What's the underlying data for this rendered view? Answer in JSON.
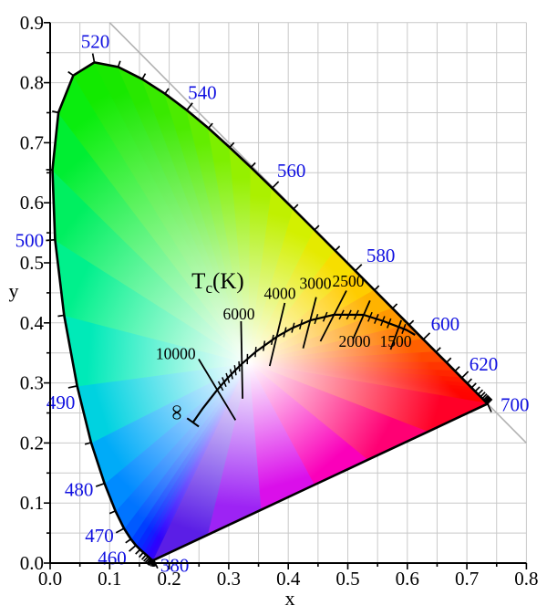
{
  "chart_data": {
    "type": "line",
    "title": "",
    "xlabel": "x",
    "ylabel": "y",
    "xlim": [
      0,
      0.8
    ],
    "ylim": [
      0,
      0.9
    ],
    "grid_step": 0.05,
    "tick_step": 0.1,
    "grid_on": true,
    "xticks": [
      "0.0",
      "0.1",
      "0.2",
      "0.3",
      "0.4",
      "0.5",
      "0.6",
      "0.7",
      "0.8"
    ],
    "yticks": [
      "0.0",
      "0.1",
      "0.2",
      "0.3",
      "0.4",
      "0.5",
      "0.6",
      "0.7",
      "0.8",
      "0.9"
    ],
    "tc_title": {
      "t": "T",
      "sub": "c",
      "rest": "(K)",
      "x": 0.2817,
      "y": 0.4696
    },
    "infinity": {
      "label": "∞",
      "x": 0.2399,
      "y": 0.2342,
      "label_x": 0.2021,
      "label_y": 0.2508
    },
    "diagonal_line": {
      "from": [
        0.1,
        0.9
      ],
      "to": [
        0.8,
        0.2
      ]
    },
    "white_point": [
      0.3333,
      0.3333
    ],
    "colors": {
      "wavelength_labels": "#1010e0",
      "temperature_labels": "#000000",
      "curves": "#000000",
      "grid": "#c9c9c9",
      "diagonal": "#b2b2b2",
      "background": "#ffffff"
    },
    "spectral_locus": [
      [
        380,
        0.1741,
        0.005
      ],
      [
        385,
        0.174,
        0.005
      ],
      [
        390,
        0.1738,
        0.0049
      ],
      [
        395,
        0.1736,
        0.0049
      ],
      [
        400,
        0.1733,
        0.0048
      ],
      [
        405,
        0.173,
        0.0048
      ],
      [
        410,
        0.1726,
        0.0048
      ],
      [
        415,
        0.1721,
        0.0048
      ],
      [
        420,
        0.1714,
        0.0051
      ],
      [
        425,
        0.1703,
        0.0058
      ],
      [
        430,
        0.1689,
        0.0069
      ],
      [
        435,
        0.1669,
        0.0086
      ],
      [
        440,
        0.1644,
        0.0109
      ],
      [
        445,
        0.1611,
        0.0138
      ],
      [
        450,
        0.1566,
        0.0177
      ],
      [
        455,
        0.151,
        0.0227
      ],
      [
        460,
        0.144,
        0.0297
      ],
      [
        465,
        0.1355,
        0.0399
      ],
      [
        470,
        0.1241,
        0.0578
      ],
      [
        475,
        0.1096,
        0.0868
      ],
      [
        480,
        0.0913,
        0.1327
      ],
      [
        485,
        0.0687,
        0.2007
      ],
      [
        490,
        0.0454,
        0.295
      ],
      [
        495,
        0.0235,
        0.4127
      ],
      [
        500,
        0.0082,
        0.5384
      ],
      [
        505,
        0.0039,
        0.6548
      ],
      [
        510,
        0.0139,
        0.7502
      ],
      [
        515,
        0.0389,
        0.812
      ],
      [
        520,
        0.0743,
        0.8338
      ],
      [
        525,
        0.1142,
        0.8262
      ],
      [
        530,
        0.1547,
        0.8059
      ],
      [
        535,
        0.1929,
        0.7816
      ],
      [
        540,
        0.2296,
        0.7543
      ],
      [
        545,
        0.2658,
        0.7243
      ],
      [
        550,
        0.3016,
        0.6923
      ],
      [
        555,
        0.3373,
        0.6589
      ],
      [
        560,
        0.3731,
        0.6245
      ],
      [
        565,
        0.4087,
        0.5896
      ],
      [
        570,
        0.4441,
        0.5547
      ],
      [
        575,
        0.4788,
        0.5202
      ],
      [
        580,
        0.5125,
        0.4866
      ],
      [
        585,
        0.5448,
        0.4544
      ],
      [
        590,
        0.5752,
        0.4242
      ],
      [
        595,
        0.6029,
        0.3965
      ],
      [
        600,
        0.627,
        0.3725
      ],
      [
        605,
        0.6482,
        0.3514
      ],
      [
        610,
        0.6658,
        0.334
      ],
      [
        615,
        0.6801,
        0.3197
      ],
      [
        620,
        0.6915,
        0.3083
      ],
      [
        625,
        0.7006,
        0.2993
      ],
      [
        630,
        0.7079,
        0.292
      ],
      [
        635,
        0.714,
        0.2859
      ],
      [
        640,
        0.719,
        0.2809
      ],
      [
        645,
        0.723,
        0.277
      ],
      [
        650,
        0.726,
        0.274
      ],
      [
        655,
        0.7283,
        0.2717
      ],
      [
        660,
        0.73,
        0.27
      ],
      [
        665,
        0.7311,
        0.2689
      ],
      [
        670,
        0.732,
        0.268
      ],
      [
        675,
        0.7327,
        0.2673
      ],
      [
        680,
        0.7334,
        0.2666
      ],
      [
        685,
        0.734,
        0.266
      ],
      [
        690,
        0.7344,
        0.2656
      ],
      [
        695,
        0.7346,
        0.2654
      ],
      [
        700,
        0.7347,
        0.2653
      ]
    ],
    "purple_line_points": [
      [
        0.18,
        0.6338,
        0.2184
      ],
      [
        0.36,
        0.5329,
        0.1716
      ],
      [
        0.52,
        0.4432,
        0.1299
      ],
      [
        0.68,
        0.3535,
        0.0883
      ],
      [
        0.84,
        0.2638,
        0.0467
      ]
    ],
    "wavelength_labels": [
      {
        "nm": 380,
        "text": "380"
      },
      {
        "nm": 460,
        "text": "460"
      },
      {
        "nm": 470,
        "text": "470"
      },
      {
        "nm": 480,
        "text": "480"
      },
      {
        "nm": 490,
        "text": "490"
      },
      {
        "nm": 500,
        "text": "500"
      },
      {
        "nm": 520,
        "text": "520"
      },
      {
        "nm": 540,
        "text": "540"
      },
      {
        "nm": 560,
        "text": "560"
      },
      {
        "nm": 580,
        "text": "580"
      },
      {
        "nm": 600,
        "text": "600"
      },
      {
        "nm": 620,
        "text": "620"
      },
      {
        "nm": 700,
        "text": "700"
      }
    ],
    "planckian_locus": [
      [
        0,
        0.2399,
        0.2342
      ],
      [
        50,
        0.2565,
        0.2577
      ],
      [
        100,
        0.2807,
        0.2884
      ],
      [
        125,
        0.2952,
        0.3048
      ],
      [
        143,
        0.3064,
        0.3166
      ],
      [
        166.7,
        0.3221,
        0.3318
      ],
      [
        200,
        0.3451,
        0.3516
      ],
      [
        250,
        0.3805,
        0.3768
      ],
      [
        286,
        0.4053,
        0.3907
      ],
      [
        333.3,
        0.4369,
        0.4041
      ],
      [
        400,
        0.477,
        0.4137
      ],
      [
        500,
        0.5267,
        0.4133
      ],
      [
        588,
        0.558,
        0.4035
      ],
      [
        666.7,
        0.5857,
        0.3931
      ],
      [
        720,
        0.599,
        0.388
      ],
      [
        780,
        0.613,
        0.38
      ]
    ],
    "isotherms": [
      {
        "label": "10000",
        "x": 0.2807,
        "y": 0.2884,
        "ux": -0.52,
        "uy": 0.854,
        "up": 0.06,
        "down": 0.059,
        "lx": 0.211,
        "ly": 0.349
      },
      {
        "label": "6000",
        "x": 0.3221,
        "y": 0.3318,
        "ux": -0.02,
        "uy": 1.0,
        "up": 0.071,
        "down": 0.058,
        "lx": 0.317,
        "ly": 0.415
      },
      {
        "label": "4000",
        "x": 0.3805,
        "y": 0.3768,
        "ux": 0.235,
        "uy": 0.972,
        "up": 0.058,
        "down": 0.05,
        "lx": 0.386,
        "ly": 0.449
      },
      {
        "label": "3000",
        "x": 0.4369,
        "y": 0.4041,
        "ux": 0.25,
        "uy": 0.968,
        "up": 0.04,
        "down": 0.048,
        "lx": 0.4456,
        "ly": 0.4656
      },
      {
        "label": "2500",
        "x": 0.477,
        "y": 0.4137,
        "ux": 0.46,
        "uy": 0.888,
        "up": 0.045,
        "down": 0.05,
        "lx": 0.5007,
        "ly": 0.4695
      },
      {
        "label": "2000",
        "x": 0.5267,
        "y": 0.4133,
        "ux": 0.405,
        "uy": 0.914,
        "up": 0.026,
        "down": 0.044,
        "lx": 0.5115,
        "ly": 0.3695
      },
      {
        "label": "1500",
        "x": 0.5857,
        "y": 0.3931,
        "ux": 0.345,
        "uy": 0.939,
        "up": 0.012,
        "down": 0.04,
        "lx": 0.5804,
        "ly": 0.3695
      }
    ],
    "minor_isotherm_mireds": [
      110,
      120,
      130,
      140,
      150,
      160,
      180,
      200,
      220,
      240,
      270,
      290,
      310,
      350,
      375,
      425,
      450,
      475,
      530,
      560,
      590,
      620,
      700
    ],
    "gamut_edge_colors_nm": [
      [
        380,
        "#3C14DC"
      ],
      [
        440,
        "#2D00FF"
      ],
      [
        460,
        "#0030FF"
      ],
      [
        470,
        "#0068FF"
      ],
      [
        480,
        "#0096FF"
      ],
      [
        485,
        "#00C0F0"
      ],
      [
        490,
        "#00E4D0"
      ],
      [
        495,
        "#00F0A0"
      ],
      [
        500,
        "#00F078"
      ],
      [
        505,
        "#00EE48"
      ],
      [
        510,
        "#00EE1C"
      ],
      [
        515,
        "#14EC00"
      ],
      [
        520,
        "#10E800"
      ],
      [
        530,
        "#2FE800"
      ],
      [
        540,
        "#55EC00"
      ],
      [
        550,
        "#8AF000"
      ],
      [
        560,
        "#B6F000"
      ],
      [
        570,
        "#DCF000"
      ],
      [
        580,
        "#FFD800"
      ],
      [
        590,
        "#FFA600"
      ],
      [
        600,
        "#FF6C00"
      ],
      [
        610,
        "#FF3C00"
      ],
      [
        620,
        "#FF1E00"
      ],
      [
        630,
        "#FF0C00"
      ],
      [
        640,
        "#FF0400"
      ],
      [
        700,
        "#FF0000"
      ]
    ],
    "gamut_edge_colors_purple": [
      [
        0,
        "#FF0000"
      ],
      [
        0.18,
        "#FF0050"
      ],
      [
        0.36,
        "#FF0098"
      ],
      [
        0.52,
        "#F400DC"
      ],
      [
        0.68,
        "#C01EF8"
      ],
      [
        0.84,
        "#7A28F0"
      ],
      [
        1,
        "#3C14DC"
      ]
    ]
  }
}
